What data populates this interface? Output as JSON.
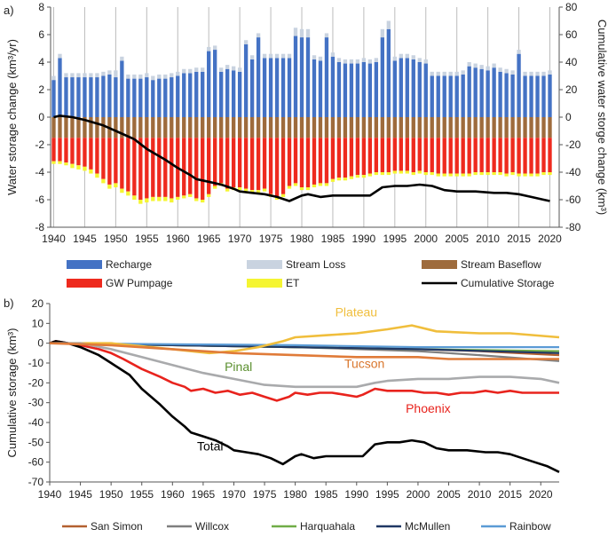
{
  "chart_data": [
    {
      "panel_label": "a)",
      "type": "bar",
      "stacked": true,
      "ylabel_left": "Water storage change (km³/yr)",
      "ylabel_right": "Cumulative water storge change (km³)",
      "ylim_left": [
        -8,
        8
      ],
      "ylim_right": [
        -80,
        80
      ],
      "yticks_left": [
        -8,
        -6,
        -4,
        -2,
        0,
        2,
        4,
        6,
        8
      ],
      "yticks_right": [
        -80,
        -60,
        -40,
        -20,
        0,
        20,
        40,
        60,
        80
      ],
      "xlim": [
        1939.5,
        2021.5
      ],
      "xticks": [
        1940,
        1945,
        1950,
        1955,
        1960,
        1965,
        1970,
        1975,
        1980,
        1985,
        1990,
        1995,
        2000,
        2005,
        2010,
        2015,
        2020
      ],
      "grid_x": true,
      "years_first": 1940,
      "series": [
        {
          "name": "Recharge",
          "color": "#4472c4",
          "values": [
            2.7,
            4.3,
            2.9,
            2.9,
            2.9,
            2.9,
            2.9,
            2.9,
            3.0,
            3.1,
            2.9,
            4.1,
            2.8,
            2.8,
            2.8,
            2.9,
            2.7,
            2.8,
            2.8,
            2.9,
            3.0,
            3.2,
            3.2,
            3.3,
            3.3,
            4.8,
            4.9,
            3.3,
            3.5,
            3.4,
            3.3,
            5.3,
            4.2,
            5.8,
            4.3,
            4.3,
            4.3,
            4.3,
            4.3,
            5.9,
            5.8,
            5.8,
            4.2,
            4.1,
            5.8,
            4.4,
            4.0,
            3.9,
            3.9,
            3.9,
            4.0,
            3.9,
            4.0,
            5.8,
            6.4,
            4.1,
            4.3,
            4.3,
            4.2,
            4.0,
            3.9,
            3.0,
            3.0,
            3.0,
            3.0,
            3.0,
            3.1,
            3.7,
            3.6,
            3.5,
            3.4,
            3.6,
            3.3,
            3.2,
            3.1,
            4.6,
            3.0,
            3.0,
            3.0,
            3.0,
            3.1
          ]
        },
        {
          "name": "Stream Loss",
          "color": "#c9d3e0",
          "values": [
            0.3,
            0.3,
            0.3,
            0.3,
            0.3,
            0.3,
            0.3,
            0.3,
            0.3,
            0.3,
            0.5,
            0.3,
            0.3,
            0.3,
            0.3,
            0.3,
            0.3,
            0.3,
            0.3,
            0.3,
            0.3,
            0.3,
            0.3,
            0.3,
            0.3,
            0.3,
            0.3,
            0.3,
            0.3,
            0.3,
            0.3,
            0.3,
            0.3,
            0.3,
            0.3,
            0.3,
            0.3,
            0.3,
            0.3,
            0.6,
            0.6,
            0.6,
            0.3,
            0.3,
            0.3,
            0.3,
            0.3,
            0.3,
            0.3,
            0.3,
            0.3,
            0.3,
            0.3,
            0.6,
            0.6,
            0.3,
            0.3,
            0.3,
            0.3,
            0.3,
            0.3,
            0.3,
            0.3,
            0.3,
            0.3,
            0.3,
            0.3,
            0.3,
            0.3,
            0.3,
            0.3,
            0.3,
            0.3,
            0.3,
            0.3,
            0.3,
            0.3,
            0.3,
            0.3,
            0.3,
            0.3
          ]
        },
        {
          "name": "Stream Baseflow",
          "color": "#9e6b3c",
          "values": [
            -1.5,
            -1.5,
            -1.5,
            -1.5,
            -1.5,
            -1.5,
            -1.5,
            -1.5,
            -1.5,
            -1.5,
            -1.5,
            -1.5,
            -1.5,
            -1.5,
            -1.5,
            -1.5,
            -1.5,
            -1.5,
            -1.5,
            -1.5,
            -1.5,
            -1.5,
            -1.5,
            -1.5,
            -1.5,
            -1.5,
            -1.5,
            -1.5,
            -1.5,
            -1.5,
            -1.5,
            -1.5,
            -1.5,
            -1.5,
            -1.5,
            -1.5,
            -1.5,
            -1.5,
            -1.5,
            -1.5,
            -1.5,
            -1.5,
            -1.5,
            -1.5,
            -1.5,
            -1.5,
            -1.5,
            -1.5,
            -1.5,
            -1.5,
            -1.5,
            -1.5,
            -1.5,
            -1.5,
            -1.5,
            -1.5,
            -1.5,
            -1.5,
            -1.5,
            -1.5,
            -1.5,
            -1.5,
            -1.5,
            -1.5,
            -1.5,
            -1.5,
            -1.5,
            -1.5,
            -1.5,
            -1.5,
            -1.5,
            -1.5,
            -1.5,
            -1.5,
            -1.5,
            -1.5,
            -1.5,
            -1.5,
            -1.5,
            -1.5,
            -1.5
          ]
        },
        {
          "name": "GW Pumpage",
          "color": "#ee2a1e",
          "values": [
            -1.7,
            -1.7,
            -1.8,
            -1.9,
            -2.0,
            -2.1,
            -2.3,
            -2.6,
            -3.0,
            -3.4,
            -3.3,
            -3.7,
            -3.9,
            -4.2,
            -4.5,
            -4.4,
            -4.3,
            -4.3,
            -4.3,
            -4.4,
            -4.3,
            -4.2,
            -4.1,
            -4.4,
            -4.5,
            -4.1,
            -3.5,
            -3.3,
            -3.7,
            -3.6,
            -3.6,
            -3.7,
            -3.8,
            -3.8,
            -3.7,
            -4.1,
            -4.3,
            -4.1,
            -3.5,
            -3.3,
            -3.6,
            -3.6,
            -3.4,
            -3.3,
            -3.3,
            -3.0,
            -2.9,
            -2.9,
            -2.8,
            -2.7,
            -2.7,
            -2.6,
            -2.5,
            -2.5,
            -2.5,
            -2.4,
            -2.4,
            -2.4,
            -2.5,
            -2.4,
            -2.5,
            -2.5,
            -2.6,
            -2.6,
            -2.6,
            -2.6,
            -2.6,
            -2.6,
            -2.5,
            -2.5,
            -2.5,
            -2.5,
            -2.5,
            -2.6,
            -2.5,
            -2.6,
            -2.6,
            -2.6,
            -2.6,
            -2.5,
            -2.5
          ]
        },
        {
          "name": "ET",
          "color": "#f5f532",
          "values": [
            -0.2,
            -0.2,
            -0.2,
            -0.3,
            -0.3,
            -0.3,
            -0.3,
            -0.3,
            -0.3,
            -0.3,
            -0.3,
            -0.3,
            -0.3,
            -0.3,
            -0.3,
            -0.3,
            -0.3,
            -0.3,
            -0.3,
            -0.3,
            -0.2,
            -0.2,
            -0.2,
            -0.2,
            -0.2,
            -0.2,
            -0.2,
            -0.2,
            -0.2,
            -0.2,
            -0.2,
            -0.2,
            -0.2,
            -0.2,
            -0.2,
            -0.2,
            -0.2,
            -0.2,
            -0.2,
            -0.2,
            -0.2,
            -0.2,
            -0.2,
            -0.2,
            -0.2,
            -0.2,
            -0.2,
            -0.2,
            -0.2,
            -0.2,
            -0.2,
            -0.2,
            -0.2,
            -0.2,
            -0.2,
            -0.2,
            -0.2,
            -0.2,
            -0.2,
            -0.2,
            -0.2,
            -0.2,
            -0.2,
            -0.2,
            -0.2,
            -0.2,
            -0.2,
            -0.2,
            -0.2,
            -0.2,
            -0.2,
            -0.2,
            -0.2,
            -0.2,
            -0.2,
            -0.2,
            -0.2,
            -0.2,
            -0.2,
            -0.2,
            -0.2
          ]
        }
      ],
      "line": {
        "name": "Cumulative Storage",
        "color": "#000000",
        "axis": "right",
        "x": [
          1940,
          1941,
          1943,
          1945,
          1948,
          1950,
          1953,
          1955,
          1958,
          1960,
          1962,
          1963,
          1965,
          1967,
          1969,
          1970,
          1972,
          1974,
          1976,
          1978,
          1980,
          1981,
          1983,
          1985,
          1988,
          1991,
          1993,
          1995,
          1997,
          1999,
          2001,
          2003,
          2005,
          2008,
          2011,
          2013,
          2015,
          2017,
          2019,
          2020
        ],
        "y": [
          0,
          1,
          0,
          -2,
          -6,
          -10,
          -16,
          -23,
          -31,
          -37,
          -42,
          -45,
          -47,
          -49,
          -52,
          -54,
          -55,
          -56,
          -58,
          -61,
          -57,
          -56,
          -58,
          -57,
          -57,
          -57,
          -51,
          -50,
          -50,
          -49,
          -50,
          -53,
          -54,
          -54,
          -55,
          -55,
          -56,
          -58,
          -60,
          -61
        ]
      },
      "legend": [
        "Recharge",
        "Stream Loss",
        "Stream Baseflow",
        "GW Pumpage",
        "ET",
        "Cumulative Storage"
      ]
    },
    {
      "panel_label": "b)",
      "type": "line",
      "ylabel": "Cumulative storage (km³)",
      "ylim": [
        -70,
        20
      ],
      "yticks": [
        -70,
        -60,
        -50,
        -40,
        -30,
        -20,
        -10,
        0,
        10,
        20
      ],
      "xlim": [
        1940,
        2023
      ],
      "xticks": [
        1940,
        1945,
        1950,
        1955,
        1960,
        1965,
        1970,
        1975,
        1980,
        1985,
        1990,
        1995,
        2000,
        2005,
        2010,
        2015,
        2020
      ],
      "grid_x": false,
      "series": [
        {
          "name": "Plateau",
          "color": "#f0be3c",
          "labeled": true,
          "x": [
            1940,
            1950,
            1960,
            1966,
            1970,
            1974,
            1978,
            1980,
            1985,
            1990,
            1995,
            1999,
            2003,
            2010,
            2015,
            2023
          ],
          "y": [
            0,
            0,
            -3,
            -5,
            -4,
            -2,
            1,
            3,
            4,
            5,
            7,
            9,
            6,
            5,
            5,
            3
          ]
        },
        {
          "name": "Phoenix",
          "color": "#e8231d",
          "labeled": true,
          "x": [
            1940,
            1941,
            1945,
            1948,
            1950,
            1952,
            1955,
            1958,
            1960,
            1962,
            1963,
            1965,
            1967,
            1969,
            1971,
            1973,
            1975,
            1977,
            1979,
            1980,
            1982,
            1984,
            1986,
            1988,
            1990,
            1991,
            1993,
            1995,
            1997,
            1999,
            2001,
            2003,
            2005,
            2007,
            2009,
            2011,
            2013,
            2015,
            2017,
            2019,
            2021,
            2023
          ],
          "y": [
            0,
            1,
            -1,
            -3,
            -5,
            -8,
            -13,
            -17,
            -20,
            -22,
            -24,
            -23,
            -25,
            -24,
            -26,
            -25,
            -27,
            -29,
            -27,
            -25,
            -26,
            -25,
            -25,
            -26,
            -27,
            -26,
            -23,
            -24,
            -24,
            -24,
            -25,
            -25,
            -26,
            -25,
            -25,
            -24,
            -25,
            -24,
            -25,
            -25,
            -25,
            -25
          ]
        },
        {
          "name": "Total",
          "color": "#000000",
          "labeled": true,
          "x": [
            1940,
            1941,
            1943,
            1945,
            1948,
            1950,
            1953,
            1955,
            1958,
            1960,
            1962,
            1963,
            1965,
            1967,
            1969,
            1970,
            1972,
            1974,
            1976,
            1978,
            1980,
            1981,
            1983,
            1985,
            1988,
            1991,
            1993,
            1995,
            1997,
            1999,
            2001,
            2003,
            2005,
            2008,
            2011,
            2013,
            2015,
            2017,
            2019,
            2021,
            2023
          ],
          "y": [
            0,
            1,
            0,
            -2,
            -6,
            -10,
            -16,
            -23,
            -31,
            -37,
            -42,
            -45,
            -47,
            -49,
            -52,
            -54,
            -55,
            -56,
            -58,
            -61,
            -57,
            -56,
            -58,
            -57,
            -57,
            -57,
            -51,
            -50,
            -50,
            -49,
            -50,
            -53,
            -54,
            -54,
            -55,
            -55,
            -56,
            -58,
            -60,
            -62,
            -65
          ]
        },
        {
          "name": "Pinal",
          "color": "#a9aaac",
          "labeled": true,
          "x": [
            1940,
            1945,
            1950,
            1955,
            1960,
            1965,
            1970,
            1975,
            1980,
            1985,
            1990,
            1993,
            1995,
            2000,
            2005,
            2010,
            2015,
            2020,
            2023
          ],
          "y": [
            0,
            0,
            -3,
            -7,
            -11,
            -15,
            -18,
            -21,
            -22,
            -22,
            -22,
            -20,
            -19,
            -18,
            -18,
            -17,
            -17,
            -18,
            -20
          ]
        },
        {
          "name": "Tucson",
          "color": "#e07b39",
          "labeled": true,
          "x": [
            1940,
            1950,
            1960,
            1970,
            1980,
            1990,
            2000,
            2005,
            2010,
            2015,
            2023
          ],
          "y": [
            0,
            -1,
            -3,
            -5,
            -6,
            -7,
            -7,
            -8,
            -8,
            -8,
            -8
          ]
        },
        {
          "name": "San Simon",
          "color": "#b36030",
          "labeled": false,
          "x": [
            1940,
            1960,
            1980,
            2000,
            2010,
            2023
          ],
          "y": [
            0,
            -1,
            -2,
            -3,
            -4,
            -6
          ]
        },
        {
          "name": "Willcox",
          "color": "#7f7f7f",
          "labeled": false,
          "x": [
            1940,
            1960,
            1980,
            2000,
            2010,
            2023
          ],
          "y": [
            0,
            -1,
            -2,
            -4,
            -6,
            -9
          ]
        },
        {
          "name": "Harquahala",
          "color": "#70ad47",
          "labeled": false,
          "x": [
            1940,
            1960,
            1980,
            2000,
            2023
          ],
          "y": [
            0,
            -1,
            -2,
            -3,
            -4
          ]
        },
        {
          "name": "McMullen",
          "color": "#203864",
          "labeled": false,
          "x": [
            1940,
            1960,
            1980,
            2000,
            2023
          ],
          "y": [
            0,
            -1,
            -2,
            -3,
            -5
          ]
        },
        {
          "name": "Rainbow",
          "color": "#5b9bd5",
          "labeled": false,
          "x": [
            1940,
            1960,
            1980,
            2000,
            2023
          ],
          "y": [
            0,
            -0.5,
            -1,
            -2,
            -2
          ]
        }
      ],
      "legend": [
        "San Simon",
        "Willcox",
        "Harquahala",
        "McMullen",
        "Rainbow"
      ]
    }
  ]
}
